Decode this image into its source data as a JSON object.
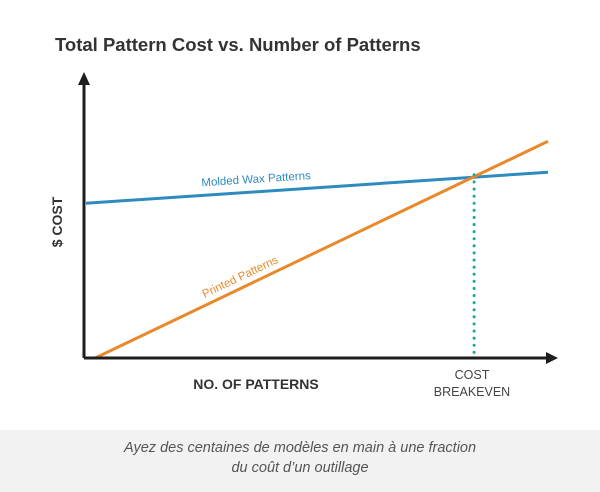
{
  "chart_data": {
    "type": "line",
    "title": "Total Pattern Cost vs. Number of Patterns",
    "xlabel": "NO. OF PATTERNS",
    "ylabel": "$ COST",
    "xlim": [
      0,
      100
    ],
    "ylim": [
      0,
      100
    ],
    "grid": false,
    "series": [
      {
        "name": "Molded Wax Patterns",
        "color": "#2e8bc0",
        "x": [
          0,
          100
        ],
        "y": [
          60,
          72
        ]
      },
      {
        "name": "Printed Patterns",
        "color": "#e8892b",
        "x": [
          2,
          100
        ],
        "y": [
          0,
          84
        ]
      }
    ],
    "breakeven": {
      "label_line1": "COST",
      "label_line2": "BREAKEVEN",
      "x": 84,
      "y": 71,
      "color": "#1aa898"
    }
  },
  "caption": {
    "line1": "Ayez des centaines de modèles en main à une fraction",
    "line2": "du coût d’un outillage"
  },
  "colors": {
    "axis": "#1e1e1e",
    "title": "#333333",
    "caption_background": "#f2f2f2"
  }
}
